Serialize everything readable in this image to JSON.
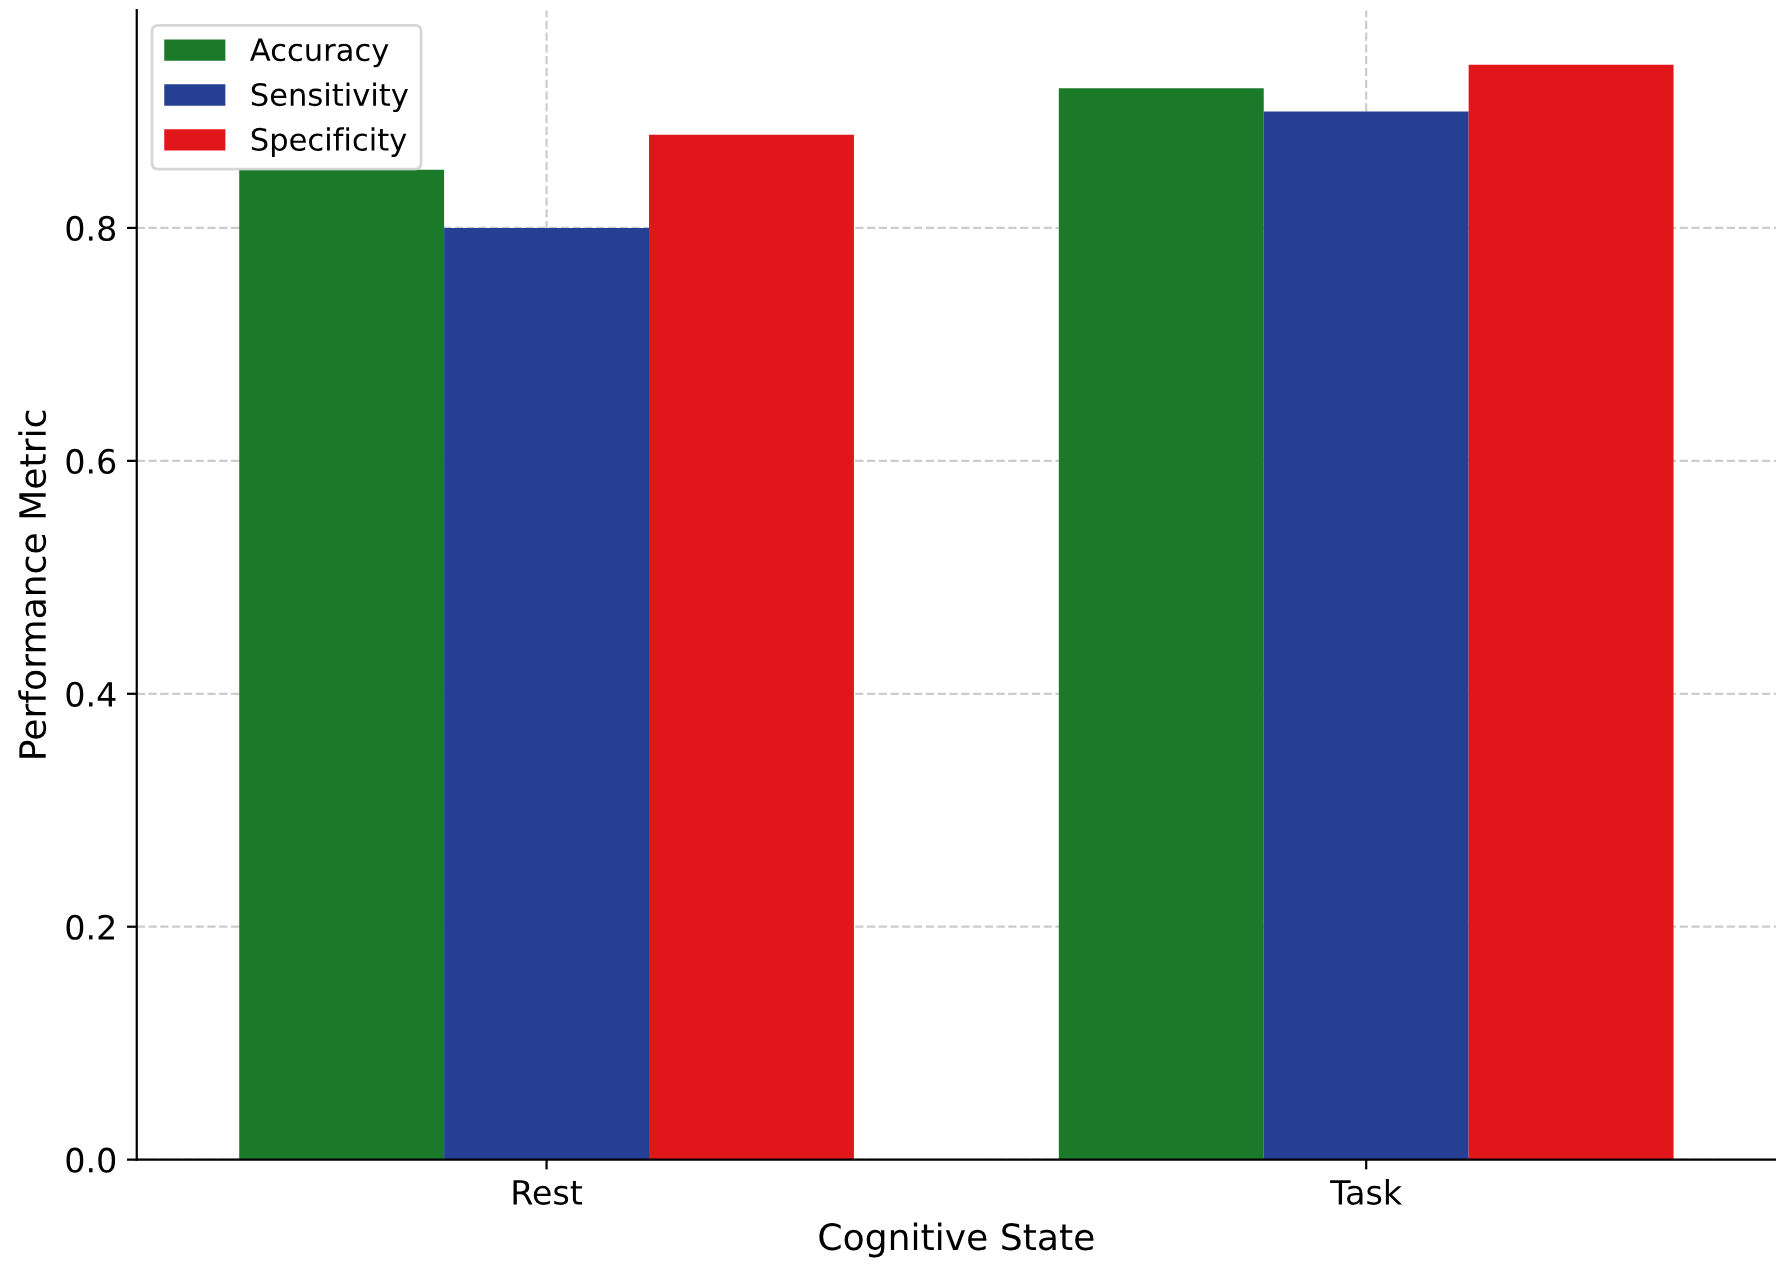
{
  "chart_data": {
    "type": "bar",
    "xlabel": "Cognitive State",
    "ylabel": "Performance Metric",
    "categories": [
      "Rest",
      "Task"
    ],
    "series": [
      {
        "name": "Accuracy",
        "color": "#1a7a2a",
        "values": [
          0.85,
          0.92
        ]
      },
      {
        "name": "Sensitivity",
        "color": "#253f94",
        "values": [
          0.8,
          0.9
        ]
      },
      {
        "name": "Specificity",
        "color": "#e0161b",
        "values": [
          0.88,
          0.94
        ]
      }
    ],
    "ylim": [
      0,
      0.987
    ],
    "yticks": [
      {
        "value": 0,
        "label": "0.0"
      },
      0.2,
      0.4,
      0.6,
      0.8
    ],
    "grid": true,
    "legend": "top left"
  }
}
